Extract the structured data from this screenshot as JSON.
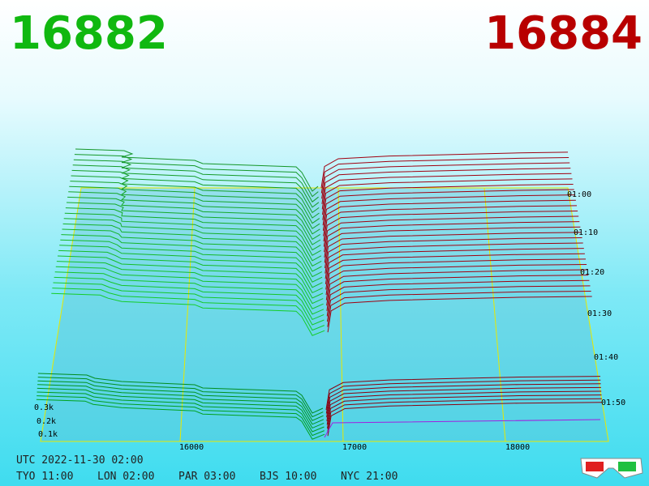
{
  "header": {
    "bid": "16882",
    "ask": "16884"
  },
  "price_axis": {
    "labels": [
      "16000",
      "17000",
      "18000"
    ]
  },
  "time_axis": {
    "labels": [
      "01:00",
      "01:10",
      "01:20",
      "01:30",
      "01:40",
      "01:50"
    ]
  },
  "depth_axis": {
    "labels": [
      "0.3k",
      "0.2k",
      "0.1k"
    ]
  },
  "footer": {
    "utc": "UTC 2022-11-30 02:00",
    "cities": [
      "TYO 11:00",
      "LON 02:00",
      "PAR 03:00",
      "BJS 10:00",
      "NYC 21:00"
    ]
  }
}
